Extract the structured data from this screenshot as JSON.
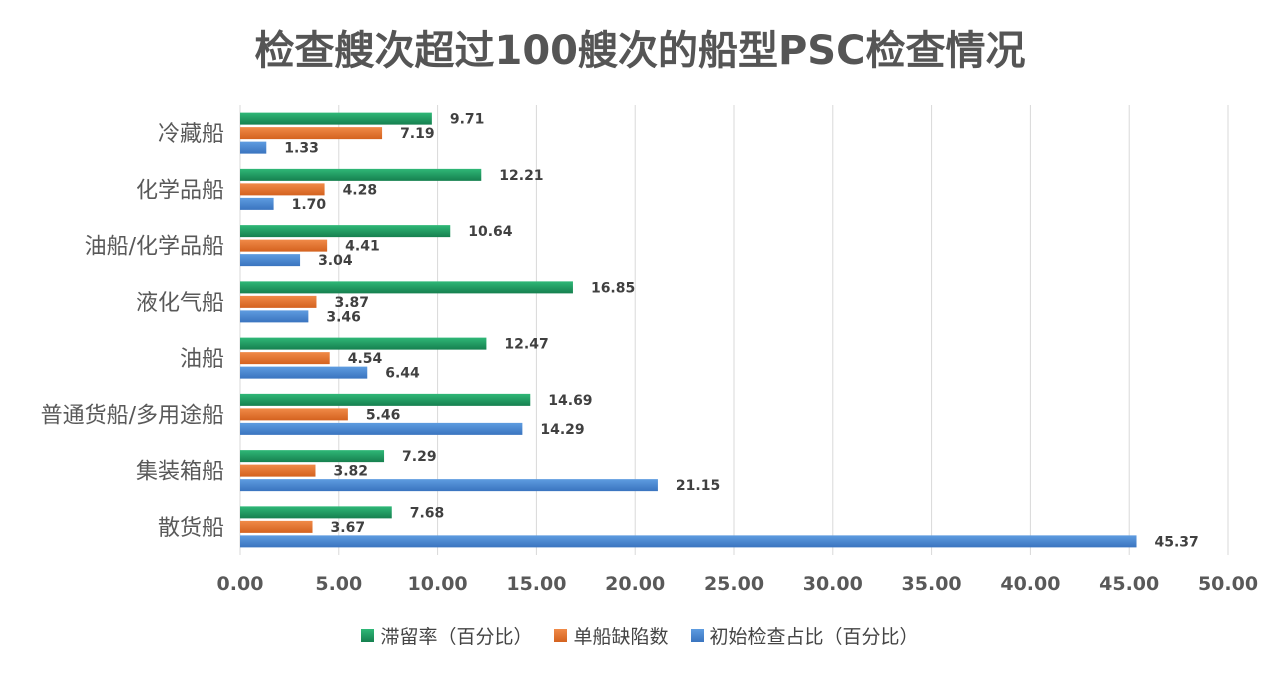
{
  "colors": {
    "detention": "#1e9e63",
    "defects": "#e8742f",
    "initial": "#4a8ad4",
    "grid": "#d9d9d9",
    "text": "#595959"
  },
  "chart_data": {
    "type": "bar",
    "orientation": "horizontal",
    "title": "检查艘次超过100艘次的船型PSC检查情况",
    "categories": [
      "冷藏船",
      "化学品船",
      "油船/化学品船",
      "液化气船",
      "油船",
      "普通货船/多用途船",
      "集装箱船",
      "散货船"
    ],
    "series": [
      {
        "name": "滞留率（百分比）",
        "values": [
          9.71,
          12.21,
          10.64,
          16.85,
          12.47,
          14.69,
          7.29,
          7.68
        ]
      },
      {
        "name": "单船缺陷数",
        "values": [
          7.19,
          4.28,
          4.41,
          3.87,
          4.54,
          5.46,
          3.82,
          3.67
        ]
      },
      {
        "name": "初始检查占比（百分比）",
        "values": [
          1.33,
          1.7,
          3.04,
          3.46,
          6.44,
          14.29,
          21.15,
          45.37
        ]
      }
    ],
    "xlim": [
      0,
      50
    ],
    "xticks": [
      "0.00",
      "5.00",
      "10.00",
      "15.00",
      "20.00",
      "25.00",
      "30.00",
      "35.00",
      "40.00",
      "45.00",
      "50.00"
    ],
    "xtick_values": [
      0,
      5,
      10,
      15,
      20,
      25,
      30,
      35,
      40,
      45,
      50
    ],
    "grid": "vertical",
    "legend_position": "bottom"
  }
}
